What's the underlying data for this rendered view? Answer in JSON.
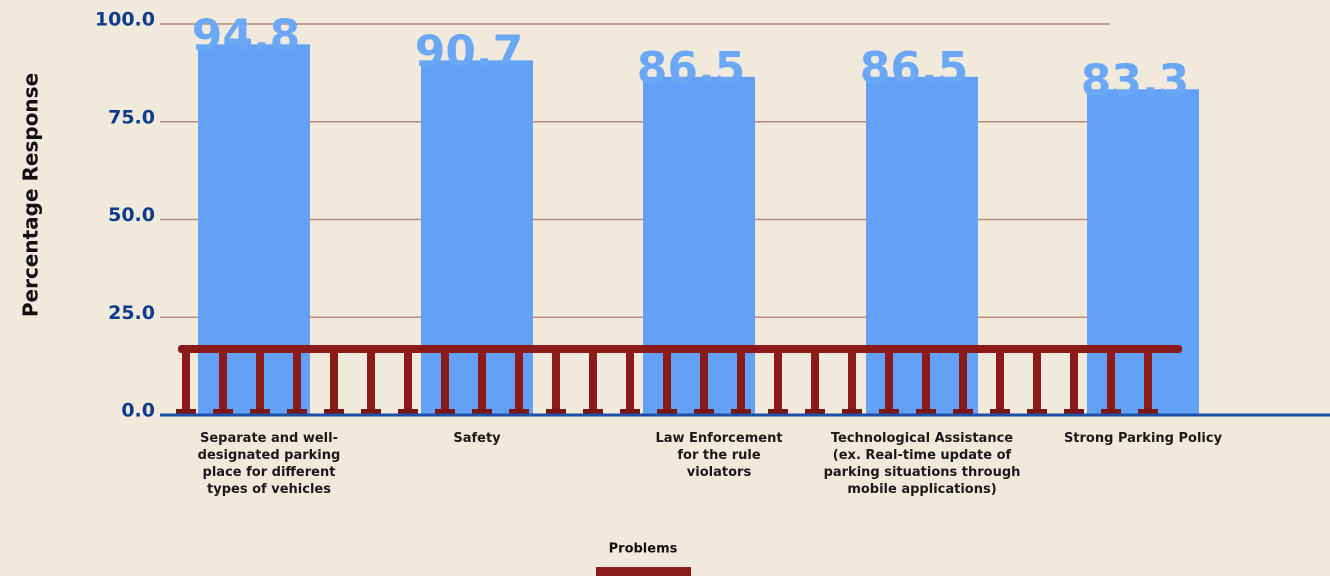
{
  "chart_data": {
    "type": "bar",
    "y_label": "Percentage Response",
    "x_label": "Problems",
    "categories": [
      "Separate and well-designated parking place for different types of vehicles",
      "Safety",
      "Law Enforcement for the rule violators",
      "Technological Assistance (ex. Real-time update of parking situations through mobile applications)",
      "Strong Parking Policy"
    ],
    "values": [
      94.8,
      90.7,
      86.5,
      86.5,
      83.3
    ],
    "color": "#63a1f7",
    "ylim": [
      0,
      100
    ],
    "yticks": [
      {
        "value": 0,
        "label": "0.0"
      },
      {
        "value": 25,
        "label": "25.0"
      },
      {
        "value": 50,
        "label": "50.0"
      },
      {
        "value": 75,
        "label": "75.0"
      },
      {
        "value": 100,
        "label": "100.0"
      }
    ],
    "grid": true
  }
}
